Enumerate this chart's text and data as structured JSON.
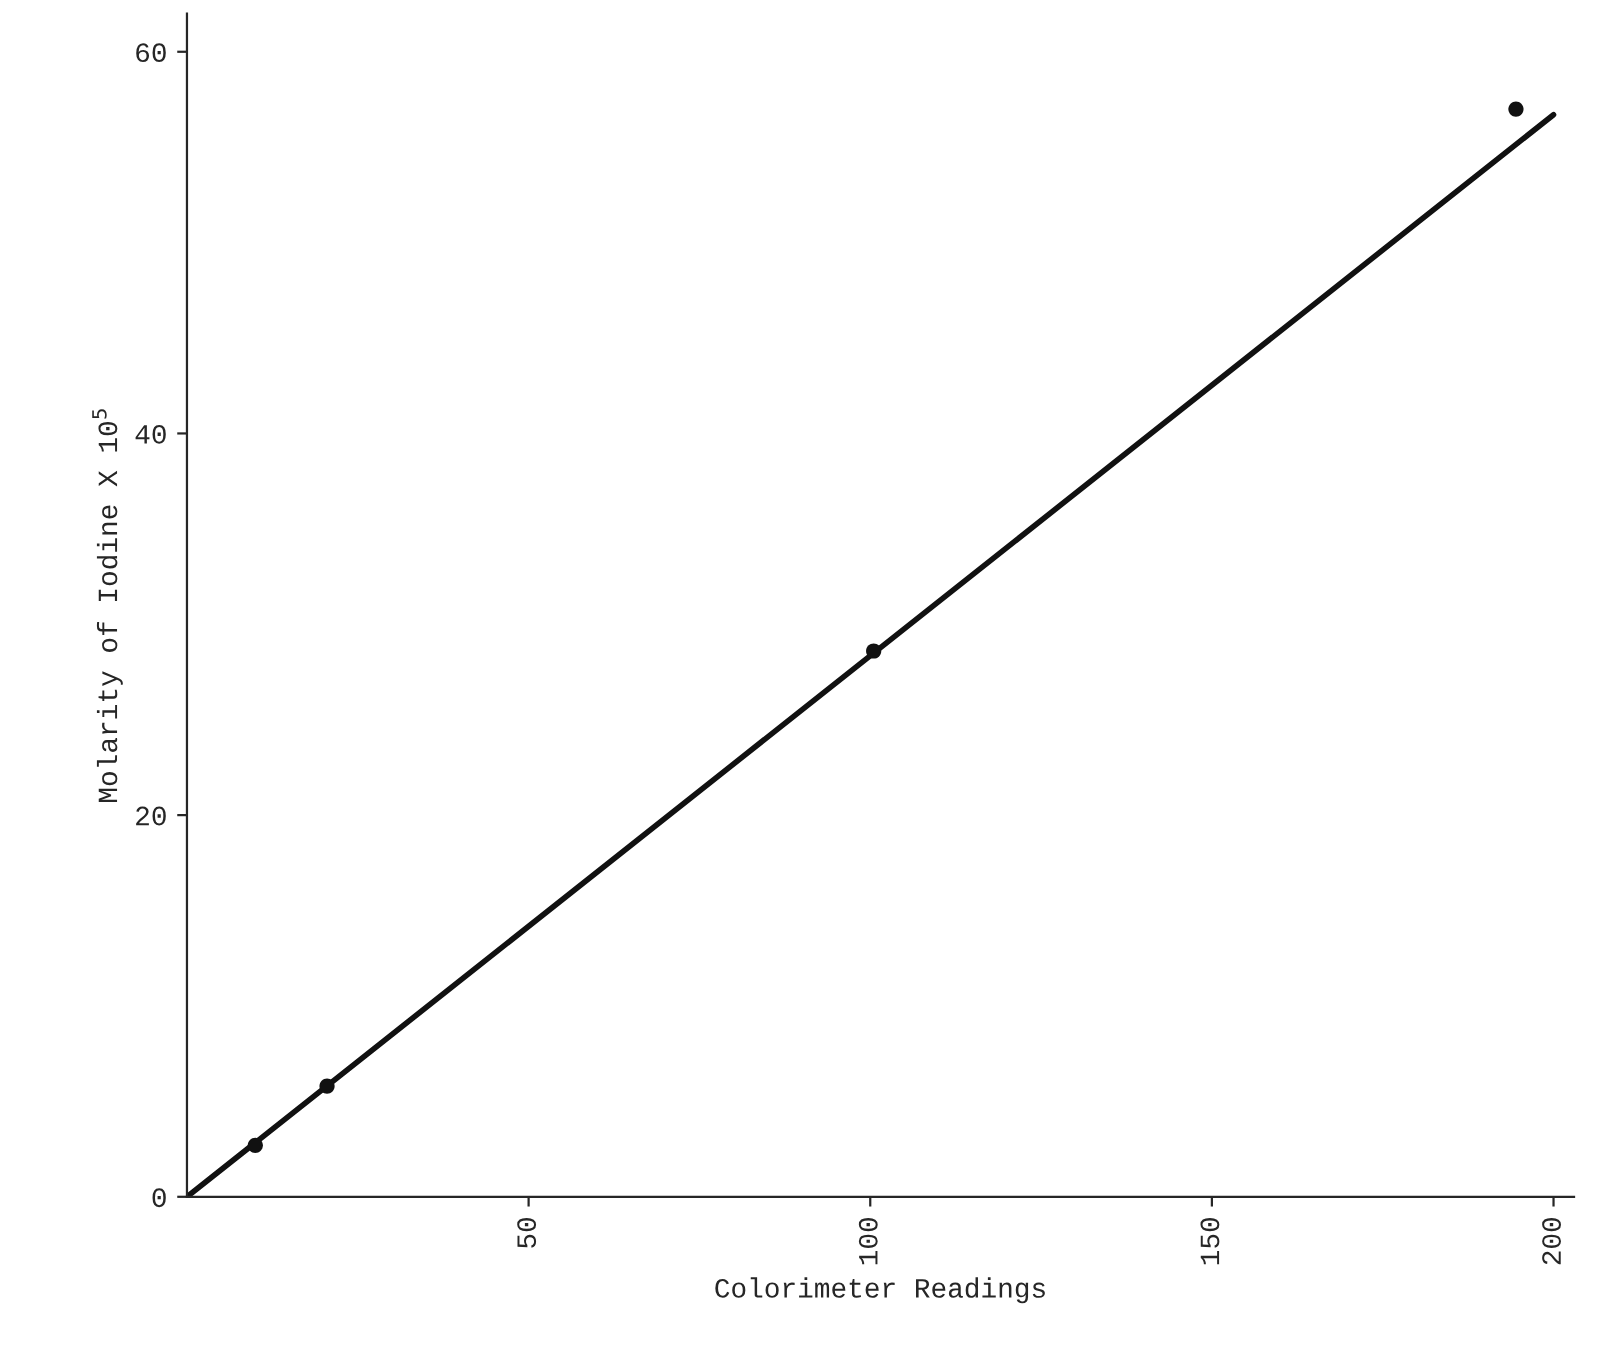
{
  "chart_data": {
    "type": "scatter",
    "xlabel": "Colorimeter Readings",
    "ylabel": "Molarity of Iodine X 10$^{5}$",
    "series": [
      {
        "color": "#111111",
        "marker": "circle",
        "x": [
          10,
          20.5,
          100.5,
          194.5
        ],
        "values": [
          2.7,
          5.8,
          28.6,
          57.0
        ]
      },
      {
        "type": "line",
        "color": "#111111",
        "line_style": "solid",
        "x": [
          0,
          200
        ],
        "values": [
          0,
          56.7
        ]
      }
    ],
    "xlim": [
      0,
      203
    ],
    "ylim": [
      0,
      62
    ],
    "xticks": [
      50,
      100,
      150,
      200
    ],
    "yticks": [
      0,
      20,
      40,
      60
    ],
    "grid": false,
    "legend": false
  }
}
